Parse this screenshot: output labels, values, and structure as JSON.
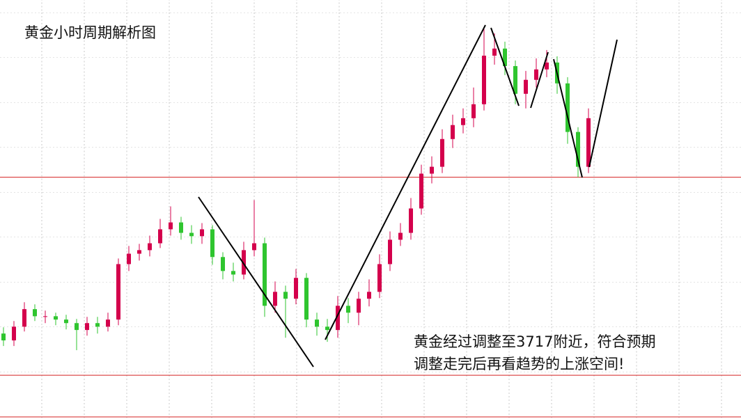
{
  "chart_data": {
    "type": "candlestick",
    "title": "黄金小时周期解析图",
    "annotation": [
      "黄金经过调整至3717附近，符合预期",
      "调整走完后再看趋势的上涨空间!"
    ],
    "open": [
      3642,
      3638.7,
      3645.3,
      3653.7,
      3650.3,
      3650.3,
      3648.7,
      3647,
      3643.7,
      3647,
      3645.3,
      3648.7,
      3675.3,
      3680.3,
      3682,
      3685.3,
      3692,
      3695.3,
      3690.3,
      3688.7,
      3692,
      3678.7,
      3672,
      3670.3,
      3682,
      3685.3,
      3655.3,
      3662,
      3658.7,
      3668.7,
      3648.7,
      3645.3,
      3643.7,
      3655.3,
      3652,
      3658.7,
      3662,
      3675.3,
      3687,
      3690.3,
      3702,
      3718.7,
      3722,
      3735.3,
      3742,
      3745.3,
      3752,
      3775.3,
      3778.7,
      3770.3,
      3757,
      3763.7,
      3768.7,
      3772,
      3762,
      3738.7,
      3722
    ],
    "high": [
      3645,
      3648,
      3657,
      3656,
      3653,
      3652,
      3651,
      3649,
      3650,
      3650,
      3652,
      3678,
      3684,
      3685,
      3689,
      3697,
      3703,
      3698,
      3694,
      3695,
      3694,
      3681,
      3676,
      3686,
      3706,
      3688,
      3667,
      3665,
      3673,
      3671,
      3652,
      3649,
      3660,
      3659,
      3662,
      3668,
      3680,
      3691,
      3695,
      3707,
      3723,
      3727,
      3740,
      3747,
      3750,
      3760,
      3788,
      3786,
      3782,
      3773,
      3768,
      3774,
      3778,
      3775,
      3765,
      3741,
      3750
    ],
    "low": [
      3636,
      3636,
      3643,
      3648,
      3647,
      3646,
      3644,
      3634,
      3641,
      3642,
      3643,
      3646,
      3672,
      3677,
      3679,
      3683,
      3689,
      3687,
      3685,
      3685,
      3675,
      3668,
      3667,
      3668,
      3679,
      3650,
      3652,
      3640,
      3656,
      3645,
      3641,
      3638,
      3640,
      3647,
      3646,
      3655,
      3659,
      3672,
      3684,
      3687,
      3699,
      3714,
      3719,
      3731,
      3738,
      3741,
      3749,
      3771,
      3766,
      3752,
      3750,
      3760,
      3765,
      3757,
      3733,
      3717,
      3719
    ],
    "close": [
      3638.7,
      3645.3,
      3653.7,
      3650.3,
      3650.3,
      3648.7,
      3647,
      3643.7,
      3647,
      3645.3,
      3648.7,
      3675.3,
      3680.3,
      3682,
      3685.3,
      3692,
      3695.3,
      3690.3,
      3688.7,
      3692,
      3678.7,
      3672,
      3670.3,
      3682,
      3685.3,
      3655.3,
      3662,
      3658.7,
      3668.7,
      3648.7,
      3645.3,
      3643.7,
      3655.3,
      3652,
      3658.7,
      3662,
      3675.3,
      3687,
      3690.3,
      3702,
      3718.7,
      3722,
      3735.3,
      3742,
      3745.3,
      3752,
      3775.3,
      3778.7,
      3770.3,
      3757,
      3763.7,
      3768.7,
      3772,
      3762,
      3738.7,
      3722,
      3745.3
    ],
    "up_color": "#d4004c",
    "down_color": "#2fc52f",
    "levels": [
      3717,
      3622,
      3602
    ],
    "level_color": "#d42020",
    "ylim": [
      3601,
      3802
    ]
  }
}
